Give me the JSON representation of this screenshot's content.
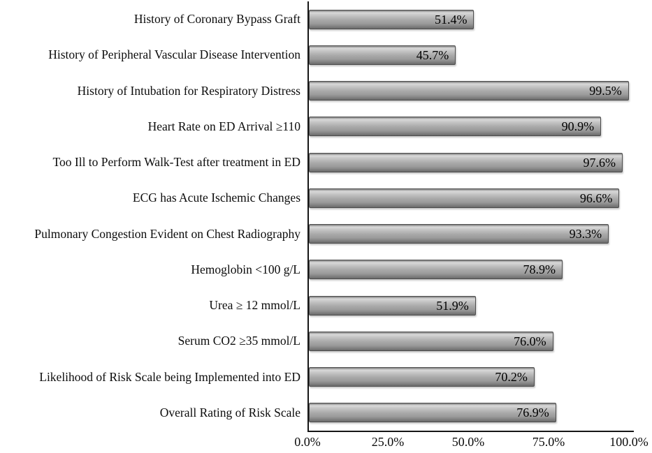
{
  "chart_data": {
    "type": "bar",
    "orientation": "horizontal",
    "title": "",
    "xlabel": "",
    "ylabel": "",
    "grid": false,
    "legend": null,
    "xlim": [
      0,
      100
    ],
    "x_ticks": [
      "0.0%",
      "25.0%",
      "50.0%",
      "75.0%",
      "100.0%"
    ],
    "categories": [
      "History of Coronary Bypass Graft",
      "History of Peripheral Vascular Disease Intervention",
      "History of Intubation for Respiratory Distress",
      "Heart Rate on ED Arrival ≥110",
      "Too Ill to Perform Walk-Test after treatment in ED",
      "ECG has Acute Ischemic Changes",
      "Pulmonary Congestion Evident on Chest Radiography",
      "Hemoglobin <100 g/L",
      "Urea ≥ 12 mmol/L",
      "Serum CO2 ≥35 mmol/L",
      "Likelihood of Risk Scale being Implemented into ED",
      "Overall Rating of Risk Scale"
    ],
    "values": [
      51.4,
      45.7,
      99.5,
      90.9,
      97.6,
      96.6,
      93.3,
      78.9,
      51.9,
      76.0,
      70.2,
      76.9
    ],
    "value_labels": [
      "51.4%",
      "45.7%",
      "99.5%",
      "90.9%",
      "97.6%",
      "96.6%",
      "93.3%",
      "78.9%",
      "51.9%",
      "76.0%",
      "70.2%",
      "76.9%"
    ],
    "colors": {
      "bar_fill": "#a9a9a9",
      "bar_highlight": "#d9d9d9",
      "bar_shadow": "#6b6b6b",
      "bar_border": "#4d4d4d",
      "axis": "#161616",
      "text": "#000000",
      "background": "#ffffff"
    }
  }
}
